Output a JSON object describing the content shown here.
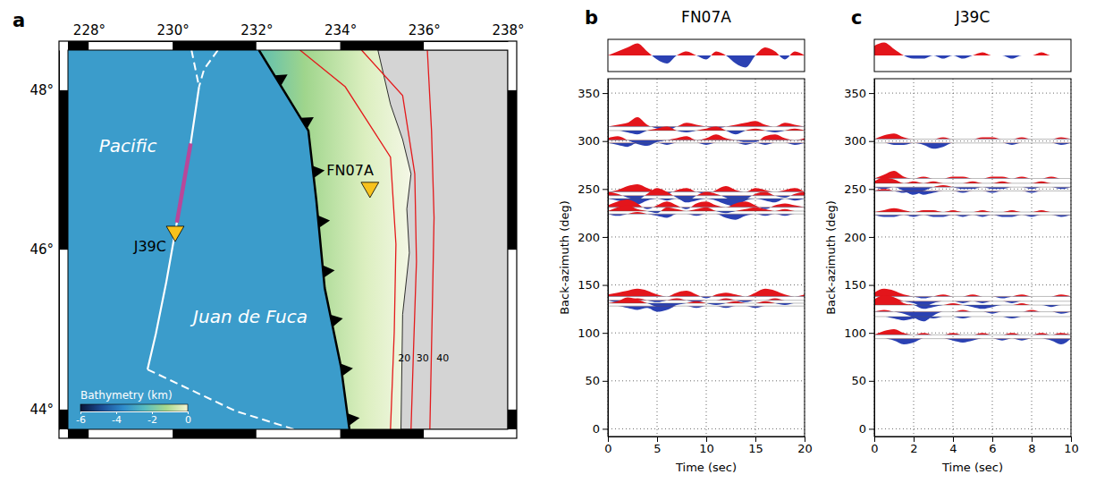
{
  "chart_data": [
    {
      "type": "map",
      "panel": "a",
      "xlim": [
        227.5,
        238
      ],
      "ylim": [
        43.75,
        48.5
      ],
      "xticks": [
        {
          "value": 228,
          "label": "228°"
        },
        {
          "value": 230,
          "label": "230°"
        },
        {
          "value": 232,
          "label": "232°"
        },
        {
          "value": 234,
          "label": "234°"
        },
        {
          "value": 236,
          "label": "236°"
        },
        {
          "value": 238,
          "label": "238°"
        }
      ],
      "yticks": [
        {
          "value": 44,
          "label": "44°"
        },
        {
          "value": 46,
          "label": "46°"
        },
        {
          "value": 48,
          "label": "48°"
        }
      ],
      "colorbar": {
        "title": "Bathymetry (km)",
        "range": [
          -6,
          0
        ],
        "ticks": [
          -6,
          -4,
          -2,
          0
        ]
      },
      "stations": [
        {
          "name": "FN07A",
          "lon": 234.71,
          "lat": 46.78
        },
        {
          "name": "J39C",
          "lon": 230.06,
          "lat": 46.23
        }
      ],
      "annotations": [
        {
          "text": "Pacific",
          "at": [
            228.24,
            47.22
          ]
        },
        {
          "text": "Juan de Fuca",
          "at": [
            230.49,
            45.08
          ]
        }
      ],
      "features": {
        "ridge": [
          [
            230.63,
            48.04
          ],
          [
            230.43,
            47.33
          ],
          [
            230.1,
            46.34
          ],
          [
            229.85,
            45.6
          ],
          [
            229.6,
            44.95
          ],
          [
            229.4,
            44.5
          ]
        ],
        "ridge_dashed": [
          [
            [
              230.45,
              48.5
            ],
            [
              230.63,
              48.04
            ]
          ],
          [
            [
              231.08,
              48.5
            ],
            [
              230.75,
              48.26
            ],
            [
              230.63,
              48.04
            ]
          ],
          [
            [
              229.4,
              44.5
            ],
            [
              231.5,
              43.98
            ],
            [
              232.9,
              43.75
            ]
          ]
        ],
        "segment": [
          [
            230.43,
            47.33
          ],
          [
            230.1,
            46.34
          ]
        ],
        "trench": [
          [
            232.06,
            48.5
          ],
          [
            233.24,
            47.49
          ],
          [
            233.43,
            46.62
          ],
          [
            233.63,
            45.52
          ],
          [
            234.02,
            44.53
          ],
          [
            234.22,
            43.75
          ]
        ],
        "coast": [
          [
            234.9,
            48.5
          ],
          [
            235.2,
            47.82
          ],
          [
            235.49,
            47.38
          ],
          [
            235.69,
            46.95
          ],
          [
            235.59,
            46.51
          ],
          [
            235.65,
            45.96
          ],
          [
            235.49,
            45.19
          ],
          [
            235.45,
            43.75
          ]
        ]
      },
      "contours": [
        {
          "label": "20",
          "label_at": [
            235.38,
            44.6
          ],
          "points": [
            [
              233.04,
              48.5
            ],
            [
              234.12,
              48.04
            ],
            [
              235.2,
              47.16
            ],
            [
              235.33,
              46.07
            ],
            [
              235.29,
              44.97
            ],
            [
              235.2,
              43.75
            ]
          ]
        },
        {
          "label": "30",
          "label_at": [
            235.82,
            44.6
          ],
          "points": [
            [
              234.51,
              48.5
            ],
            [
              235.49,
              47.93
            ],
            [
              235.78,
              46.95
            ],
            [
              235.82,
              45.85
            ],
            [
              235.75,
              44.75
            ],
            [
              235.69,
              43.75
            ]
          ]
        },
        {
          "label": "40",
          "label_at": [
            236.3,
            44.6
          ],
          "points": [
            [
              236.08,
              48.5
            ],
            [
              236.18,
              47.49
            ],
            [
              236.24,
              46.4
            ],
            [
              236.2,
              45.3
            ],
            [
              236.14,
              43.75
            ]
          ]
        }
      ]
    },
    {
      "type": "wiggle",
      "panel": "b",
      "title": "FN07A",
      "xlabel": "Time (sec)",
      "ylabel": "Back-azimuth (deg)",
      "xlim": [
        0,
        20
      ],
      "xticks": [
        0,
        5,
        10,
        15,
        20
      ],
      "ylim": [
        -8,
        365
      ],
      "yticks": [
        0,
        50,
        100,
        150,
        200,
        250,
        300,
        350
      ],
      "grid": true,
      "x": [
        0,
        1,
        2,
        3,
        4,
        5,
        6,
        7,
        8,
        9,
        10,
        11,
        12,
        13,
        14,
        15,
        16,
        17,
        18,
        19,
        20
      ],
      "stack": {
        "ylim": [
          -4,
          4
        ],
        "tick_labels": false,
        "values": [
          0,
          1,
          2,
          3,
          1,
          -1,
          -2,
          0,
          1,
          0,
          -1,
          1,
          0,
          -2,
          -3,
          0,
          2,
          1,
          -1,
          1,
          0
        ]
      },
      "traces": [
        {
          "back_azimuth": 315,
          "values": [
            0,
            2,
            4,
            10,
            2,
            -2,
            -4,
            0,
            4,
            2,
            0,
            -2,
            0,
            2,
            4,
            6,
            2,
            0,
            4,
            2,
            0
          ]
        },
        {
          "back_azimuth": 311,
          "values": [
            0,
            0,
            -2,
            -4,
            0,
            2,
            4,
            0,
            -2,
            0,
            2,
            4,
            0,
            -4,
            0,
            2,
            0,
            -2,
            0,
            2,
            0
          ]
        },
        {
          "back_azimuth": 301,
          "values": [
            2,
            4,
            0,
            -4,
            -6,
            -2,
            0,
            2,
            4,
            0,
            2,
            6,
            2,
            0,
            -2,
            -2,
            4,
            6,
            2,
            0,
            2
          ]
        },
        {
          "back_azimuth": 298,
          "values": [
            0,
            -2,
            -4,
            0,
            0,
            0,
            -2,
            0,
            0,
            0,
            -2,
            0,
            0,
            0,
            -2,
            0,
            -2,
            0,
            0,
            -2,
            0
          ]
        },
        {
          "back_azimuth": 247,
          "values": [
            0,
            2,
            6,
            8,
            4,
            0,
            -2,
            2,
            4,
            0,
            -2,
            2,
            6,
            2,
            0,
            4,
            2,
            0,
            2,
            4,
            0
          ]
        },
        {
          "back_azimuth": 243,
          "values": [
            4,
            2,
            -2,
            -4,
            2,
            8,
            4,
            -2,
            -6,
            0,
            4,
            2,
            -2,
            -8,
            -4,
            2,
            4,
            0,
            -2,
            2,
            4
          ]
        },
        {
          "back_azimuth": 240,
          "values": [
            0,
            -2,
            -4,
            -6,
            -2,
            0,
            -2,
            0,
            -4,
            -2,
            0,
            -2,
            -6,
            -8,
            -2,
            0,
            -2,
            -4,
            0,
            -2,
            0
          ]
        },
        {
          "back_azimuth": 231,
          "values": [
            2,
            6,
            8,
            4,
            -2,
            2,
            6,
            2,
            -2,
            4,
            6,
            2,
            0,
            4,
            6,
            2,
            -2,
            2,
            4,
            2,
            0
          ]
        },
        {
          "back_azimuth": 227,
          "values": [
            0,
            4,
            6,
            2,
            0,
            -2,
            4,
            2,
            0,
            2,
            4,
            0,
            -2,
            0,
            2,
            4,
            2,
            0,
            2,
            0,
            0
          ]
        },
        {
          "back_azimuth": 224,
          "values": [
            0,
            -2,
            0,
            2,
            0,
            -2,
            -4,
            0,
            0,
            -2,
            0,
            0,
            -4,
            -6,
            -2,
            0,
            -2,
            0,
            -2,
            0,
            0
          ]
        },
        {
          "back_azimuth": 138,
          "values": [
            2,
            4,
            6,
            8,
            6,
            2,
            0,
            4,
            6,
            2,
            -2,
            2,
            4,
            2,
            0,
            4,
            8,
            6,
            2,
            0,
            2
          ]
        },
        {
          "back_azimuth": 134,
          "values": [
            0,
            -2,
            0,
            2,
            0,
            -2,
            0,
            2,
            0,
            -2,
            0,
            0,
            2,
            0,
            -2,
            0,
            0,
            2,
            0,
            0,
            0
          ]
        },
        {
          "back_azimuth": 131,
          "values": [
            0,
            2,
            6,
            4,
            0,
            -4,
            -6,
            -2,
            0,
            2,
            0,
            -2,
            0,
            2,
            0,
            0,
            2,
            0,
            -2,
            0,
            0
          ]
        },
        {
          "back_azimuth": 128,
          "values": [
            0,
            0,
            -2,
            -4,
            -2,
            -6,
            -4,
            0,
            0,
            -2,
            0,
            0,
            -2,
            0,
            0,
            -2,
            0,
            0,
            0,
            0,
            0
          ]
        }
      ]
    },
    {
      "type": "wiggle",
      "panel": "c",
      "title": "J39C",
      "xlabel": "Time (sec)",
      "ylabel": "Back-azimuth (deg)",
      "xlim": [
        0,
        10
      ],
      "xticks": [
        0,
        2,
        4,
        6,
        8,
        10
      ],
      "ylim": [
        -8,
        365
      ],
      "yticks": [
        0,
        50,
        100,
        150,
        200,
        250,
        300,
        350
      ],
      "grid": true,
      "x": [
        0,
        0.5,
        1,
        1.5,
        2,
        2.5,
        3,
        3.5,
        4,
        4.5,
        5,
        5.5,
        6,
        6.5,
        7,
        7.5,
        8,
        8.5,
        9,
        9.5,
        10
      ],
      "stack": {
        "ylim": [
          -5,
          5
        ],
        "tick_labels": false,
        "values": [
          3,
          4,
          2,
          0,
          -1,
          -1,
          0,
          -1,
          0,
          -1,
          0,
          1,
          0,
          0,
          -1,
          0,
          0,
          1,
          0,
          0,
          0
        ]
      },
      "traces": [
        {
          "back_azimuth": 302,
          "values": [
            0,
            4,
            6,
            2,
            0,
            0,
            0,
            2,
            0,
            0,
            0,
            2,
            2,
            0,
            0,
            2,
            0,
            0,
            0,
            2,
            0
          ]
        },
        {
          "back_azimuth": 298,
          "values": [
            0,
            0,
            -2,
            -2,
            0,
            -2,
            -6,
            -4,
            0,
            0,
            0,
            0,
            0,
            0,
            -2,
            0,
            0,
            0,
            0,
            -2,
            0
          ]
        },
        {
          "back_azimuth": 261,
          "values": [
            0,
            4,
            8,
            2,
            0,
            2,
            0,
            0,
            2,
            2,
            0,
            0,
            2,
            2,
            0,
            2,
            0,
            0,
            2,
            0,
            0
          ]
        },
        {
          "back_azimuth": 256,
          "values": [
            2,
            6,
            4,
            0,
            2,
            0,
            2,
            0,
            0,
            0,
            2,
            0,
            0,
            2,
            0,
            0,
            0,
            2,
            0,
            0,
            0
          ]
        },
        {
          "back_azimuth": 252,
          "values": [
            0,
            -2,
            0,
            -4,
            -8,
            -4,
            0,
            2,
            0,
            -2,
            -2,
            0,
            -2,
            -2,
            0,
            0,
            -2,
            0,
            0,
            -2,
            0
          ]
        },
        {
          "back_azimuth": 248,
          "values": [
            0,
            2,
            0,
            -2,
            0,
            -4,
            -2,
            0,
            0,
            -2,
            0,
            0,
            -2,
            0,
            0,
            0,
            -2,
            0,
            0,
            0,
            0
          ]
        },
        {
          "back_azimuth": 226,
          "values": [
            0,
            2,
            4,
            2,
            0,
            2,
            2,
            0,
            2,
            0,
            0,
            2,
            0,
            0,
            2,
            0,
            0,
            2,
            0,
            0,
            0
          ]
        },
        {
          "back_azimuth": 223,
          "values": [
            0,
            -2,
            -2,
            0,
            -2,
            0,
            -2,
            -2,
            0,
            -2,
            0,
            -2,
            0,
            -2,
            -2,
            0,
            -2,
            0,
            0,
            -2,
            0
          ]
        },
        {
          "back_azimuth": 138,
          "values": [
            4,
            8,
            6,
            2,
            0,
            -2,
            0,
            2,
            0,
            0,
            2,
            0,
            0,
            -2,
            0,
            2,
            0,
            0,
            0,
            2,
            0
          ]
        },
        {
          "back_azimuth": 133,
          "values": [
            2,
            6,
            4,
            0,
            -2,
            -6,
            -2,
            0,
            0,
            -2,
            0,
            -2,
            0,
            0,
            -2,
            0,
            0,
            0,
            0,
            0,
            0
          ]
        },
        {
          "back_azimuth": 129,
          "values": [
            4,
            10,
            8,
            2,
            0,
            -4,
            -2,
            0,
            2,
            0,
            -2,
            -4,
            -2,
            0,
            0,
            2,
            0,
            0,
            -2,
            0,
            0
          ]
        },
        {
          "back_azimuth": 122,
          "values": [
            0,
            2,
            0,
            -2,
            -6,
            -10,
            -4,
            0,
            0,
            2,
            0,
            0,
            -2,
            0,
            0,
            0,
            2,
            0,
            0,
            -2,
            0
          ]
        },
        {
          "back_azimuth": 117,
          "values": [
            0,
            0,
            -2,
            -4,
            -2,
            0,
            -2,
            0,
            0,
            -2,
            0,
            0,
            0,
            0,
            -2,
            0,
            0,
            0,
            0,
            0,
            0
          ]
        },
        {
          "back_azimuth": 98,
          "values": [
            0,
            4,
            6,
            2,
            0,
            2,
            0,
            0,
            2,
            0,
            0,
            2,
            0,
            0,
            2,
            0,
            0,
            2,
            0,
            2,
            0
          ]
        },
        {
          "back_azimuth": 94,
          "values": [
            0,
            0,
            -2,
            -6,
            -4,
            0,
            0,
            0,
            -2,
            -4,
            -2,
            0,
            0,
            -2,
            0,
            -2,
            0,
            0,
            -2,
            -6,
            0
          ]
        }
      ]
    }
  ]
}
